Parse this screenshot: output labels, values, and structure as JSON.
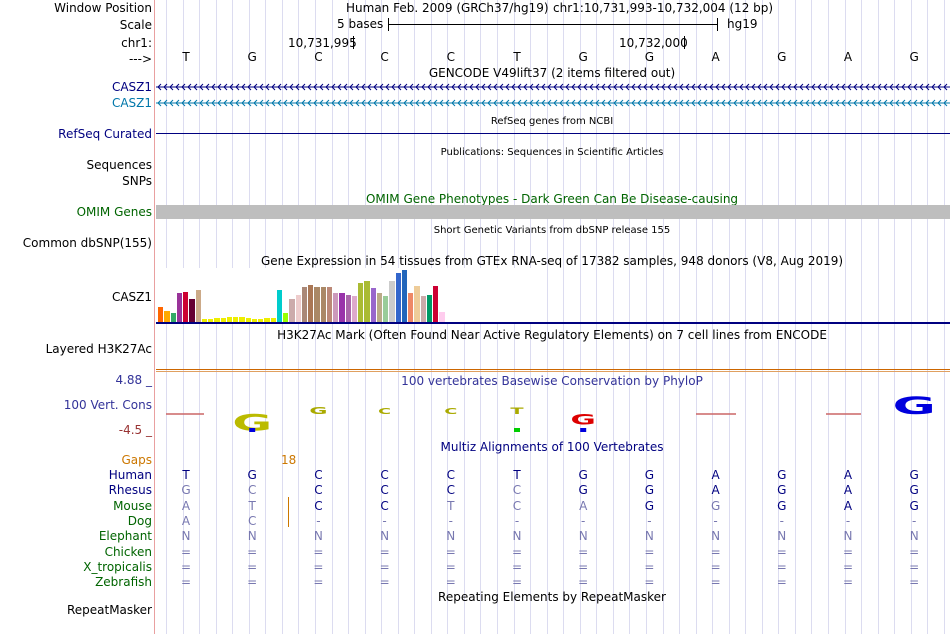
{
  "labels": {
    "window_position": "Window Position",
    "scale": "Scale",
    "chrom": "chr1:",
    "arrow": "--->",
    "casz1_1": "CASZ1",
    "casz1_2": "CASZ1",
    "refseq": "RefSeq Curated",
    "sequences": "Sequences",
    "snps": "SNPs",
    "omim": "OMIM Genes",
    "dbsnp": "Common dbSNP(155)",
    "gtex_gene": "CASZ1",
    "h3k27ac": "Layered H3K27Ac",
    "cons_max": "4.88 _",
    "cons_track": "100 Vert. Cons",
    "cons_min": "-4.5 _",
    "gaps": "Gaps",
    "repeatmasker": "RepeatMasker"
  },
  "header": {
    "assembly": "Human Feb. 2009 (GRCh37/hg19)",
    "position": "chr1:10,731,993-10,732,004 (12 bp)",
    "scale_text": "5 bases",
    "scale_db": "hg19",
    "coord1": "10,731,995",
    "coord2": "10,732,000"
  },
  "bases": [
    "T",
    "G",
    "C",
    "C",
    "C",
    "T",
    "G",
    "G",
    "A",
    "G",
    "A",
    "G"
  ],
  "titles": {
    "gencode": "GENCODE V49lift37 (2 items filtered out)",
    "refseq": "RefSeq genes from NCBI",
    "publications": "Publications: Sequences in Scientific Articles",
    "omim": "OMIM Gene Phenotypes - Dark Green Can Be Disease-causing",
    "dbsnp": "Short Genetic Variants from dbSNP release 155",
    "gtex": "Gene Expression in 54 tissues from GTEx RNA-seq of 17382 samples, 948 donors (V8, Aug 2019)",
    "h3k27ac": "H3K27Ac Mark (Often Found Near Active Regulatory Elements) on 7 cell lines from ENCODE",
    "phylop": "100 vertebrates Basewise Conservation by PhyloP",
    "multiz": "Multiz Alignments of 100 Vertebrates",
    "repeatmasker": "Repeating Elements by RepeatMasker"
  },
  "gaps_value": "18",
  "gtex_bars": [
    {
      "color": "#ff6600",
      "value": 0.28
    },
    {
      "color": "#ffaa00",
      "value": 0.22
    },
    {
      "color": "#33aa66",
      "value": 0.18
    },
    {
      "color": "#993399",
      "value": 0.55
    },
    {
      "color": "#cc0033",
      "value": 0.58
    },
    {
      "color": "#660033",
      "value": 0.45
    },
    {
      "color": "#ccaa88",
      "value": 0.62
    },
    {
      "color": "#eeee00",
      "value": 0.06
    },
    {
      "color": "#eeee00",
      "value": 0.06
    },
    {
      "color": "#eeee00",
      "value": 0.08
    },
    {
      "color": "#eeee00",
      "value": 0.08
    },
    {
      "color": "#eeee00",
      "value": 0.1
    },
    {
      "color": "#eeee00",
      "value": 0.1
    },
    {
      "color": "#eeee00",
      "value": 0.1
    },
    {
      "color": "#eeee00",
      "value": 0.08
    },
    {
      "color": "#eeee00",
      "value": 0.06
    },
    {
      "color": "#eeee00",
      "value": 0.06
    },
    {
      "color": "#eeee00",
      "value": 0.08
    },
    {
      "color": "#eeee00",
      "value": 0.08
    },
    {
      "color": "#00cccc",
      "value": 0.62
    },
    {
      "color": "#99ff00",
      "value": 0.18
    },
    {
      "color": "#ccaaaa",
      "value": 0.45
    },
    {
      "color": "#eecccc",
      "value": 0.52
    },
    {
      "color": "#aa8877",
      "value": 0.68
    },
    {
      "color": "#aa7755",
      "value": 0.72
    },
    {
      "color": "#aa8866",
      "value": 0.68
    },
    {
      "color": "#aa8866",
      "value": 0.68
    },
    {
      "color": "#bb8877",
      "value": 0.68
    },
    {
      "color": "#cc99bb",
      "value": 0.55
    },
    {
      "color": "#9933aa",
      "value": 0.55
    },
    {
      "color": "#aa66aa",
      "value": 0.52
    },
    {
      "color": "#ddaacc",
      "value": 0.5
    },
    {
      "color": "#aabb33",
      "value": 0.75
    },
    {
      "color": "#aabb33",
      "value": 0.78
    },
    {
      "color": "#9966cc",
      "value": 0.65
    },
    {
      "color": "#bbaa88",
      "value": 0.55
    },
    {
      "color": "#99cc99",
      "value": 0.5
    },
    {
      "color": "#cccccc",
      "value": 0.78
    },
    {
      "color": "#3366cc",
      "value": 0.95
    },
    {
      "color": "#2266bb",
      "value": 1.0
    },
    {
      "color": "#ee8866",
      "value": 0.55
    },
    {
      "color": "#eecc99",
      "value": 0.7
    },
    {
      "color": "#ccaaaa",
      "value": 0.5
    },
    {
      "color": "#009966",
      "value": 0.52
    },
    {
      "color": "#cc0033",
      "value": 0.7
    },
    {
      "color": "#ffccee",
      "value": 0.2
    }
  ],
  "conservation": [
    {
      "letter": "G",
      "color": "#bbbb00",
      "dir": "down",
      "h": 0.55,
      "accent": "#0000dd"
    },
    {
      "letter": "G",
      "color": "#aaaa00",
      "dir": "up",
      "h": 0.25
    },
    {
      "letter": "C",
      "color": "#aaaa00",
      "dir": "up",
      "h": 0.18
    },
    {
      "letter": "C",
      "color": "#aaaa00",
      "dir": "up",
      "h": 0.18
    },
    {
      "letter": "T",
      "color": "#aaaa00",
      "dir": "up",
      "h": 0.22,
      "accent": "#00cc00"
    },
    {
      "letter": "G",
      "color": "#dd0000",
      "dir": "down",
      "h": 0.35,
      "accent": "#0000dd"
    },
    {
      "letter": "G",
      "color": "#0000dd",
      "dir": "up",
      "h": 0.6
    }
  ],
  "multiz": [
    {
      "name": "Human",
      "color": "#000080",
      "seq": [
        "T",
        "G",
        "C",
        "C",
        "C",
        "T",
        "G",
        "G",
        "A",
        "G",
        "A",
        "G"
      ],
      "dim": [
        false,
        false,
        false,
        false,
        false,
        false,
        false,
        false,
        false,
        false,
        false,
        false
      ]
    },
    {
      "name": "Rhesus",
      "color": "#000080",
      "seq": [
        "G",
        "C",
        "C",
        "C",
        "C",
        "C",
        "G",
        "G",
        "A",
        "G",
        "A",
        "G"
      ],
      "dim": [
        true,
        true,
        false,
        false,
        false,
        true,
        false,
        false,
        false,
        false,
        false,
        false
      ]
    },
    {
      "name": "Mouse",
      "color": "#006400",
      "seq": [
        "A",
        "T",
        "C",
        "C",
        "T",
        "C",
        "A",
        "G",
        "G",
        "G",
        "A",
        "G"
      ],
      "dim": [
        true,
        true,
        false,
        false,
        true,
        true,
        true,
        false,
        true,
        false,
        false,
        false
      ]
    },
    {
      "name": "Dog",
      "color": "#006400",
      "seq": [
        "A",
        "C",
        "-",
        "-",
        "-",
        "-",
        "-",
        "-",
        "-",
        "-",
        "-",
        "-"
      ],
      "dim": [
        true,
        true,
        true,
        true,
        true,
        true,
        true,
        true,
        true,
        true,
        true,
        true
      ]
    },
    {
      "name": "Elephant",
      "color": "#006400",
      "seq": [
        "N",
        "N",
        "N",
        "N",
        "N",
        "N",
        "N",
        "N",
        "N",
        "N",
        "N",
        "N"
      ],
      "dim": [
        true,
        true,
        true,
        true,
        true,
        true,
        true,
        true,
        true,
        true,
        true,
        true
      ]
    },
    {
      "name": "Chicken",
      "color": "#006400",
      "seq": [
        "=",
        "=",
        "=",
        "=",
        "=",
        "=",
        "=",
        "=",
        "=",
        "=",
        "=",
        "="
      ],
      "dim": [
        true,
        true,
        true,
        true,
        true,
        true,
        true,
        true,
        true,
        true,
        true,
        true
      ]
    },
    {
      "name": "X_tropicalis",
      "color": "#006400",
      "seq": [
        "=",
        "=",
        "=",
        "=",
        "=",
        "=",
        "=",
        "=",
        "=",
        "=",
        "=",
        "="
      ],
      "dim": [
        true,
        true,
        true,
        true,
        true,
        true,
        true,
        true,
        true,
        true,
        true,
        true
      ]
    },
    {
      "name": "Zebrafish",
      "color": "#006400",
      "seq": [
        "=",
        "=",
        "=",
        "=",
        "=",
        "=",
        "=",
        "=",
        "=",
        "=",
        "=",
        "="
      ],
      "dim": [
        true,
        true,
        true,
        true,
        true,
        true,
        true,
        true,
        true,
        true,
        true,
        true
      ]
    }
  ],
  "colors": {
    "track_label_blue": "#000080",
    "omim_green": "#006400",
    "gencode_teal": "#0077aa",
    "gaps_orange": "#cc7700",
    "cons_red": "#993333",
    "phylop_blue": "#333399"
  }
}
